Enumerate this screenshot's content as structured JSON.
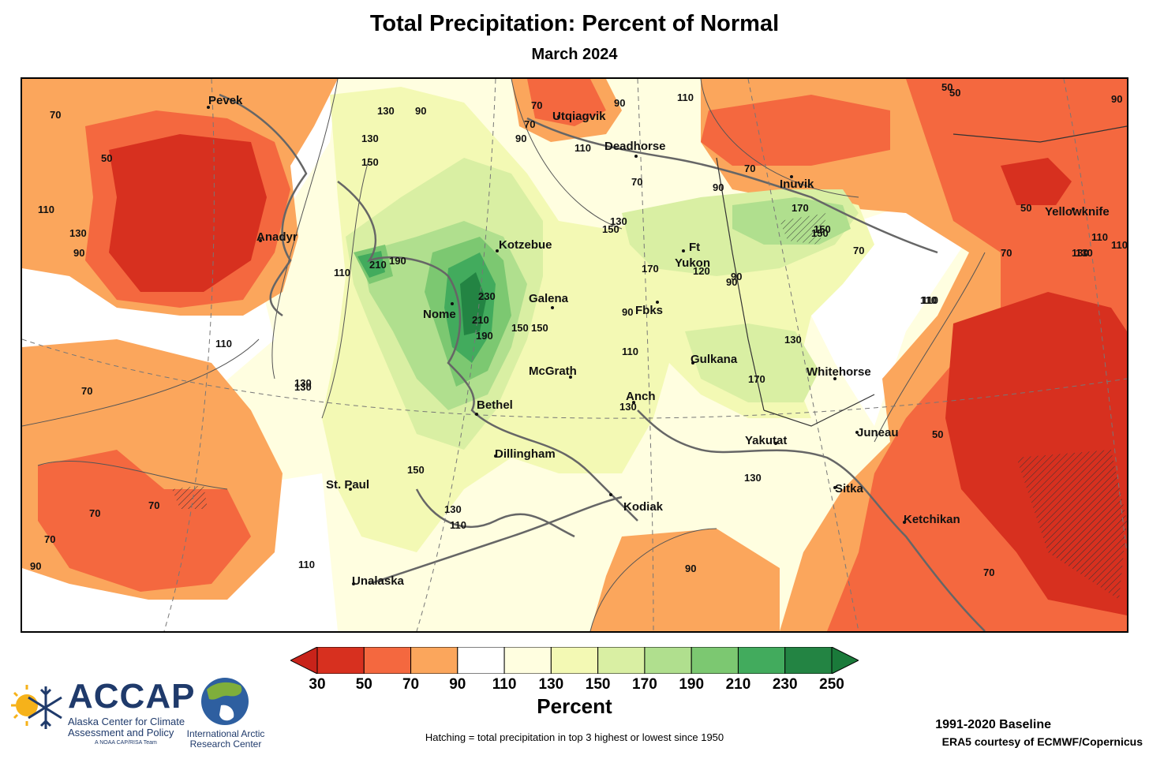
{
  "header": {
    "title": "Total Precipitation: Percent of Normal",
    "subtitle": "March 2024"
  },
  "map": {
    "cities": [
      {
        "name": "Pevek",
        "lon": 170.3,
        "lat": 69.7
      },
      {
        "name": "Anadyr",
        "lon": 177.5,
        "lat": 64.7
      },
      {
        "name": "Utqiagvik",
        "lon": -156.8,
        "lat": 71.3
      },
      {
        "name": "Deadhorse",
        "lon": -148.4,
        "lat": 70.2
      },
      {
        "name": "Inuvik",
        "lon": -133.7,
        "lat": 68.4
      },
      {
        "name": "Yellowknife",
        "lon": -114.4,
        "lat": 62.5
      },
      {
        "name": "Kotzebue",
        "lon": -162.6,
        "lat": 66.9
      },
      {
        "name": "Ft",
        "lon": -145.3,
        "lat": 66.6
      },
      {
        "name": "Yukon",
        "lon": -145.3,
        "lat": 66.6
      },
      {
        "name": "Nome",
        "lon": -165.4,
        "lat": 64.5
      },
      {
        "name": "Galena",
        "lon": -156.9,
        "lat": 64.7
      },
      {
        "name": "Fbks",
        "lon": -147.7,
        "lat": 64.8
      },
      {
        "name": "McGrath",
        "lon": -155.6,
        "lat": 62.9
      },
      {
        "name": "Gulkana",
        "lon": -145.5,
        "lat": 62.3
      },
      {
        "name": "Whitehorse",
        "lon": -135.1,
        "lat": 60.7
      },
      {
        "name": "Bethel",
        "lon": -161.8,
        "lat": 60.8
      },
      {
        "name": "Anch",
        "lon": -149.9,
        "lat": 61.2
      },
      {
        "name": "Yakutat",
        "lon": -139.7,
        "lat": 59.5
      },
      {
        "name": "Juneau",
        "lon": -134.4,
        "lat": 58.3
      },
      {
        "name": "Dillingham",
        "lon": -158.5,
        "lat": 59.0
      },
      {
        "name": "St. Paul",
        "lon": -170.3,
        "lat": 57.1
      },
      {
        "name": "Kodiak",
        "lon": -152.4,
        "lat": 57.8
      },
      {
        "name": "Sitka",
        "lon": -135.3,
        "lat": 57.1
      },
      {
        "name": "Ketchikan",
        "lon": -131.6,
        "lat": 55.3
      },
      {
        "name": "Unalaska",
        "lon": -166.5,
        "lat": 53.9
      }
    ],
    "contour_labels": [
      "70",
      "50",
      "110",
      "130",
      "90",
      "70",
      "210",
      "190",
      "230",
      "210",
      "190",
      "150",
      "130",
      "90",
      "110",
      "130",
      "70",
      "90",
      "70",
      "70",
      "150",
      "130",
      "130",
      "90",
      "110",
      "50",
      "70",
      "90",
      "110",
      "110",
      "150",
      "110",
      "170",
      "120",
      "150",
      "150",
      "170",
      "130",
      "90",
      "90",
      "110",
      "130",
      "130",
      "170",
      "110",
      "130",
      "150",
      "110",
      "90",
      "70",
      "50",
      "70",
      "90",
      "110",
      "150",
      "130",
      "130",
      "110",
      "70",
      "50",
      "70",
      "50",
      "90",
      "70",
      "70",
      "90",
      "110",
      "130"
    ]
  },
  "legend": {
    "tick_labels": [
      "30",
      "50",
      "70",
      "90",
      "110",
      "130",
      "150",
      "170",
      "190",
      "210",
      "230",
      "250"
    ],
    "colors": [
      "#d7301f",
      "#f4683f",
      "#fba65c",
      "#ffffff",
      "#fffee0",
      "#f3f9b4",
      "#d9efa3",
      "#b0df8e",
      "#7cc871",
      "#42ab5d",
      "#238443"
    ],
    "under_color": "#c8231a",
    "over_color": "#1a7a3a",
    "unit": "Percent"
  },
  "footer": {
    "note": "Hatching = total precipitation in top 3 highest or lowest since 1950",
    "baseline": "1991-2020 Baseline",
    "credit": "ERA5 courtesy of ECMWF/Copernicus",
    "accap": {
      "acronym": "ACCAP",
      "line1": "Alaska Center for Climate",
      "line2": "Assessment and Policy",
      "tagline": "A NOAA CAP/RISA Team"
    },
    "iarc": {
      "line1": "International Arctic",
      "line2": "Research Center"
    }
  }
}
